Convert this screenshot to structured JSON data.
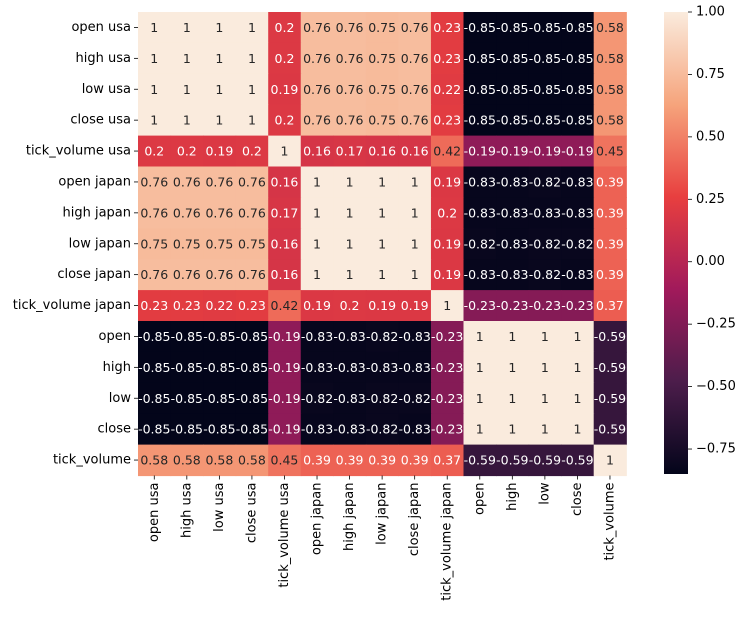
{
  "chart_data": {
    "type": "heatmap",
    "title": "",
    "xlabel": "",
    "ylabel": "",
    "labels": [
      "open usa",
      "high usa",
      "low usa",
      "close usa",
      "tick_volume usa",
      "open japan",
      "high japan",
      "low japan",
      "close japan",
      "tick_volume japan",
      "open",
      "high",
      "low",
      "close",
      "tick_volume"
    ],
    "values": [
      [
        1,
        1,
        1,
        1,
        0.2,
        0.76,
        0.76,
        0.75,
        0.76,
        0.23,
        -0.85,
        -0.85,
        -0.85,
        -0.85,
        0.58
      ],
      [
        1,
        1,
        1,
        1,
        0.2,
        0.76,
        0.76,
        0.75,
        0.76,
        0.23,
        -0.85,
        -0.85,
        -0.85,
        -0.85,
        0.58
      ],
      [
        1,
        1,
        1,
        1,
        0.19,
        0.76,
        0.76,
        0.75,
        0.76,
        0.22,
        -0.85,
        -0.85,
        -0.85,
        -0.85,
        0.58
      ],
      [
        1,
        1,
        1,
        1,
        0.2,
        0.76,
        0.76,
        0.75,
        0.76,
        0.23,
        -0.85,
        -0.85,
        -0.85,
        -0.85,
        0.58
      ],
      [
        0.2,
        0.2,
        0.19,
        0.2,
        1,
        0.16,
        0.17,
        0.16,
        0.16,
        0.42,
        -0.19,
        -0.19,
        -0.19,
        -0.19,
        0.45
      ],
      [
        0.76,
        0.76,
        0.76,
        0.76,
        0.16,
        1,
        1,
        1,
        1,
        0.19,
        -0.83,
        -0.83,
        -0.82,
        -0.83,
        0.39
      ],
      [
        0.76,
        0.76,
        0.76,
        0.76,
        0.17,
        1,
        1,
        1,
        1,
        0.2,
        -0.83,
        -0.83,
        -0.83,
        -0.83,
        0.39
      ],
      [
        0.75,
        0.75,
        0.75,
        0.75,
        0.16,
        1,
        1,
        1,
        1,
        0.19,
        -0.82,
        -0.83,
        -0.82,
        -0.82,
        0.39
      ],
      [
        0.76,
        0.76,
        0.76,
        0.76,
        0.16,
        1,
        1,
        1,
        1,
        0.19,
        -0.83,
        -0.83,
        -0.82,
        -0.83,
        0.39
      ],
      [
        0.23,
        0.23,
        0.22,
        0.23,
        0.42,
        0.19,
        0.2,
        0.19,
        0.19,
        1,
        -0.23,
        -0.23,
        -0.23,
        -0.23,
        0.37
      ],
      [
        -0.85,
        -0.85,
        -0.85,
        -0.85,
        -0.19,
        -0.83,
        -0.83,
        -0.82,
        -0.83,
        -0.23,
        1,
        1,
        1,
        1,
        -0.59
      ],
      [
        -0.85,
        -0.85,
        -0.85,
        -0.85,
        -0.19,
        -0.83,
        -0.83,
        -0.83,
        -0.83,
        -0.23,
        1,
        1,
        1,
        1,
        -0.59
      ],
      [
        -0.85,
        -0.85,
        -0.85,
        -0.85,
        -0.19,
        -0.82,
        -0.83,
        -0.82,
        -0.82,
        -0.23,
        1,
        1,
        1,
        1,
        -0.59
      ],
      [
        -0.85,
        -0.85,
        -0.85,
        -0.85,
        -0.19,
        -0.83,
        -0.83,
        -0.82,
        -0.83,
        -0.23,
        1,
        1,
        1,
        1,
        -0.59
      ],
      [
        0.58,
        0.58,
        0.58,
        0.58,
        0.45,
        0.39,
        0.39,
        0.39,
        0.39,
        0.37,
        -0.59,
        -0.59,
        -0.59,
        -0.59,
        1
      ]
    ],
    "colorbar": {
      "vmin": -0.85,
      "vmax": 1.0,
      "ticks": [
        1.0,
        0.75,
        0.5,
        0.25,
        0.0,
        -0.25,
        -0.5,
        -0.75
      ],
      "tick_labels": [
        "1.00",
        "0.75",
        "0.50",
        "0.25",
        "0.00",
        "−0.25",
        "−0.50",
        "−0.75"
      ]
    },
    "colormap_stops": [
      "#03051a",
      "#4c1d4b",
      "#a11a5b",
      "#e83f3f",
      "#f6a47c",
      "#faebdd"
    ]
  }
}
